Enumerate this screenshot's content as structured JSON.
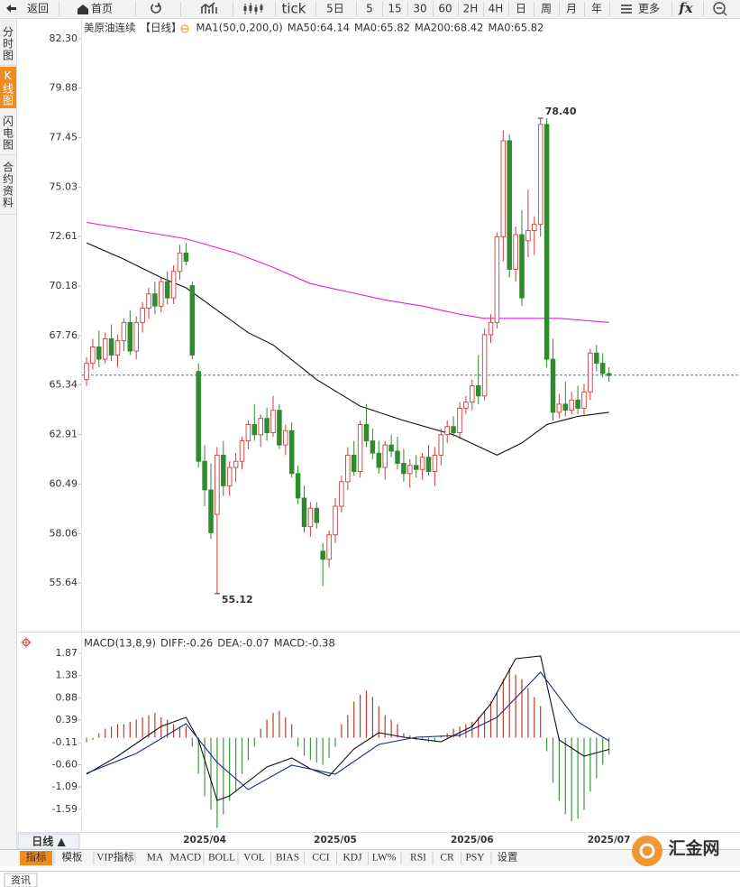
{
  "toolbar": {
    "items": [
      "返回",
      "首页",
      "tick",
      "5日",
      "5",
      "15",
      "30",
      "60",
      "2H",
      "4H",
      "日",
      "周",
      "月",
      "年",
      "更多",
      "fx"
    ]
  },
  "sidebar": {
    "tabs": [
      "分时图",
      "K线图",
      "闪电图",
      "合约资料"
    ]
  },
  "chart_data": [
    {
      "type": "candlestick",
      "legend": [
        {
          "text": "美原油连续",
          "color": "#222222"
        },
        {
          "text": "【日线】",
          "color": "#e8890c"
        },
        {
          "text": "MA1(50,0,200,0)",
          "color": "#222222"
        },
        {
          "text": "MA50:64.14",
          "color": "#222222"
        },
        {
          "text": "MA0:65.82",
          "color": "#1c2a8c"
        },
        {
          "text": "MA200:68.42",
          "color": "#e020e0"
        },
        {
          "text": "MA0:65.82",
          "color": "#e8890c"
        }
      ],
      "ylim": [
        53.7,
        82.6
      ],
      "yticks": [
        {
          "value": 82.3,
          "label": "82.30"
        },
        79.88,
        77.45,
        75.03,
        72.61,
        70.18,
        67.76,
        65.34,
        62.91,
        60.49,
        58.06,
        55.64
      ],
      "grid": false,
      "up_color": "#d23c3c",
      "down_color": "#2e8b2e",
      "last_price": 65.82,
      "last_price_color": "#4a7ab5",
      "categories": [
        null,
        null,
        null,
        null,
        null,
        null,
        null,
        null,
        null,
        null,
        null,
        null,
        null,
        null,
        null,
        null,
        null,
        null,
        null,
        "2025/04",
        null,
        null,
        null,
        null,
        null,
        null,
        null,
        null,
        null,
        null,
        null,
        null,
        null,
        null,
        null,
        null,
        null,
        null,
        null,
        null,
        "2025/05",
        null,
        null,
        null,
        null,
        null,
        null,
        null,
        null,
        null,
        null,
        null,
        null,
        null,
        null,
        null,
        null,
        null,
        null,
        null,
        null,
        null,
        "2025/06",
        null,
        null,
        null,
        null,
        null,
        null,
        null,
        null,
        null,
        null,
        null,
        null,
        null,
        null,
        null,
        null,
        null,
        null,
        null,
        null,
        null,
        "2025/07"
      ],
      "candles": [
        [
          65.6,
          66.7,
          65.3,
          66.4
        ],
        [
          66.4,
          67.6,
          66.1,
          67.2
        ],
        [
          67.2,
          68.0,
          66.2,
          66.6
        ],
        [
          66.6,
          67.9,
          66.4,
          67.6
        ],
        [
          67.6,
          68.3,
          66.5,
          66.8
        ],
        [
          66.8,
          67.8,
          66.2,
          67.5
        ],
        [
          67.5,
          68.6,
          67.0,
          68.4
        ],
        [
          68.4,
          69.0,
          66.8,
          67.0
        ],
        [
          67.0,
          68.7,
          66.6,
          68.4
        ],
        [
          68.4,
          69.4,
          67.9,
          69.1
        ],
        [
          69.1,
          70.1,
          68.6,
          69.8
        ],
        [
          69.8,
          70.4,
          68.8,
          69.2
        ],
        [
          69.2,
          70.6,
          68.9,
          70.4
        ],
        [
          70.4,
          70.9,
          69.3,
          69.6
        ],
        [
          69.6,
          71.2,
          69.3,
          70.9
        ],
        [
          70.9,
          72.2,
          70.5,
          71.8
        ],
        [
          71.8,
          72.3,
          71.2,
          71.4
        ],
        [
          70.2,
          70.4,
          66.6,
          66.8
        ],
        [
          66.0,
          66.4,
          61.3,
          61.6
        ],
        [
          61.6,
          62.4,
          59.4,
          60.2
        ],
        [
          60.2,
          61.5,
          57.8,
          58.1
        ],
        [
          59.0,
          62.3,
          55.12,
          61.9
        ],
        [
          61.9,
          62.6,
          59.9,
          60.4
        ],
        [
          60.4,
          61.6,
          59.9,
          61.3
        ],
        [
          61.3,
          62.0,
          60.6,
          61.6
        ],
        [
          61.6,
          62.8,
          61.2,
          62.6
        ],
        [
          62.6,
          63.6,
          62.2,
          63.4
        ],
        [
          63.4,
          64.4,
          62.6,
          62.9
        ],
        [
          62.9,
          63.9,
          62.3,
          63.7
        ],
        [
          63.7,
          64.2,
          62.6,
          63.0
        ],
        [
          63.0,
          64.8,
          62.8,
          64.1
        ],
        [
          64.1,
          64.4,
          62.2,
          62.4
        ],
        [
          62.4,
          63.4,
          61.9,
          63.1
        ],
        [
          63.1,
          63.5,
          60.8,
          61.0
        ],
        [
          61.0,
          61.4,
          59.5,
          59.8
        ],
        [
          59.8,
          60.4,
          58.1,
          58.4
        ],
        [
          58.4,
          59.6,
          57.9,
          59.3
        ],
        [
          59.3,
          59.6,
          58.3,
          58.6
        ],
        [
          57.2,
          57.6,
          55.5,
          56.8
        ],
        [
          56.8,
          58.2,
          56.4,
          58.0
        ],
        [
          58.0,
          59.8,
          57.6,
          59.4
        ],
        [
          59.4,
          60.9,
          59.1,
          60.6
        ],
        [
          60.6,
          62.3,
          60.2,
          61.9
        ],
        [
          61.9,
          62.6,
          60.9,
          61.1
        ],
        [
          61.1,
          63.6,
          60.8,
          63.4
        ],
        [
          63.4,
          64.4,
          62.3,
          62.6
        ],
        [
          62.6,
          63.2,
          61.7,
          62.0
        ],
        [
          62.0,
          62.6,
          61.0,
          61.3
        ],
        [
          61.3,
          62.6,
          60.7,
          62.4
        ],
        [
          62.4,
          62.9,
          61.8,
          62.1
        ],
        [
          62.1,
          62.8,
          61.2,
          61.5
        ],
        [
          61.5,
          62.2,
          60.6,
          61.0
        ],
        [
          61.0,
          61.7,
          60.3,
          61.4
        ],
        [
          61.4,
          61.9,
          60.8,
          61.2
        ],
        [
          61.2,
          62.0,
          60.7,
          61.8
        ],
        [
          61.8,
          62.4,
          60.9,
          61.1
        ],
        [
          61.1,
          62.3,
          60.4,
          61.9
        ],
        [
          61.9,
          63.2,
          61.4,
          62.9
        ],
        [
          62.9,
          63.6,
          62.5,
          63.3
        ],
        [
          63.3,
          63.8,
          62.8,
          63.0
        ],
        [
          63.0,
          64.5,
          62.7,
          64.2
        ],
        [
          64.2,
          64.8,
          63.9,
          64.5
        ],
        [
          64.5,
          65.6,
          64.1,
          65.3
        ],
        [
          65.3,
          66.8,
          64.4,
          64.8
        ],
        [
          64.8,
          68.1,
          64.6,
          67.8
        ],
        [
          67.8,
          68.8,
          67.4,
          68.4
        ],
        [
          68.4,
          72.8,
          68.1,
          72.6
        ],
        [
          72.6,
          77.8,
          71.4,
          77.3
        ],
        [
          77.3,
          77.6,
          70.6,
          71.0
        ],
        [
          71.0,
          73.1,
          70.4,
          72.7
        ],
        [
          72.7,
          73.9,
          69.2,
          69.6
        ],
        [
          72.4,
          74.9,
          71.6,
          72.9
        ],
        [
          72.9,
          73.6,
          71.7,
          73.2
        ],
        [
          73.2,
          78.4,
          72.6,
          78.1
        ],
        [
          78.1,
          78.4,
          66.2,
          66.6
        ],
        [
          66.6,
          67.6,
          63.6,
          64.0
        ],
        [
          64.0,
          64.9,
          63.7,
          64.4
        ],
        [
          64.4,
          65.5,
          63.8,
          64.1
        ],
        [
          64.1,
          65.0,
          63.9,
          64.6
        ],
        [
          64.6,
          65.3,
          63.9,
          64.2
        ],
        [
          64.2,
          65.4,
          63.8,
          65.0
        ],
        [
          65.0,
          67.1,
          64.6,
          66.9
        ],
        [
          66.9,
          67.3,
          66.0,
          66.4
        ],
        [
          66.4,
          66.9,
          65.7,
          65.9
        ],
        [
          65.9,
          66.2,
          65.5,
          65.8
        ]
      ],
      "lines": [
        {
          "color": "#e020e0",
          "x": [
            0,
            8,
            16,
            24,
            30,
            36,
            42,
            48,
            54,
            60,
            64,
            70,
            76,
            84
          ],
          "values": [
            73.3,
            72.9,
            72.5,
            71.8,
            71.1,
            70.3,
            69.9,
            69.5,
            69.2,
            68.8,
            68.6,
            68.6,
            68.6,
            68.4
          ]
        },
        {
          "color": "#111111",
          "x": [
            0,
            6,
            12,
            16,
            21,
            26,
            30,
            37,
            44,
            51,
            59,
            66,
            70,
            74,
            79,
            84
          ],
          "values": [
            72.3,
            71.5,
            70.6,
            70.1,
            69.0,
            67.9,
            67.3,
            65.6,
            64.3,
            63.6,
            62.9,
            61.9,
            62.5,
            63.4,
            63.8,
            64.0
          ]
        }
      ],
      "annotations": [
        {
          "text": "78.40",
          "index": 73,
          "color": "#d23c3c"
        },
        {
          "text": "55.12",
          "index": 21,
          "color": "#2e8b2e"
        }
      ]
    },
    {
      "type": "macd",
      "legend": [
        {
          "text": "MACD(13,8,9)",
          "color": "#222222"
        },
        {
          "text": "DIFF:-0.26",
          "color": "#222222"
        },
        {
          "text": "DEA:-0.07",
          "color": "#1c2a8c"
        },
        {
          "text": "MACD:-0.38",
          "color": "#e020e0"
        }
      ],
      "ylim": [
        -2.15,
        2.05
      ],
      "yticks": [
        1.87,
        1.38,
        0.88,
        0.39,
        -0.11,
        {
          "value": -0.6,
          "label": "-0.60"
        },
        -1.09,
        -1.59
      ],
      "up_color": "#c0392b",
      "down_color": "#3c9a3c",
      "histogram": [
        -0.1,
        -0.05,
        0.1,
        0.2,
        0.25,
        0.3,
        0.3,
        0.35,
        0.4,
        0.45,
        0.5,
        0.55,
        0.45,
        0.4,
        0.3,
        0.25,
        0.25,
        -0.2,
        -0.8,
        -1.3,
        -1.6,
        -2.0,
        -1.7,
        -1.4,
        -1.2,
        -0.8,
        -0.5,
        -0.2,
        0.2,
        0.4,
        0.55,
        0.6,
        0.45,
        0.3,
        -0.2,
        -0.4,
        -0.5,
        -0.55,
        -0.6,
        -0.45,
        -0.2,
        0.3,
        0.5,
        0.8,
        0.95,
        1.05,
        0.9,
        0.7,
        0.5,
        0.4,
        0.3,
        0.1,
        0.05,
        -0.05,
        -0.05,
        -0.1,
        -0.1,
        0.05,
        0.1,
        0.2,
        0.25,
        0.3,
        0.35,
        0.45,
        0.6,
        0.8,
        1.0,
        1.3,
        1.55,
        1.4,
        1.3,
        1.1,
        0.9,
        0.7,
        -0.3,
        -1.0,
        -1.4,
        -1.7,
        -1.85,
        -1.8,
        -1.6,
        -1.2,
        -0.9,
        -0.6,
        -0.38
      ],
      "lines": [
        {
          "color": "#111111",
          "x": [
            0,
            5,
            12,
            16,
            18,
            21,
            23,
            29,
            33,
            36,
            39,
            43,
            47,
            51,
            57,
            62,
            65,
            69,
            73,
            76,
            80,
            84
          ],
          "values": [
            -0.81,
            -0.41,
            0.25,
            0.45,
            -0.05,
            -1.39,
            -1.29,
            -0.65,
            -0.45,
            -0.69,
            -0.85,
            -0.25,
            0.11,
            0.01,
            -0.09,
            0.25,
            0.75,
            1.75,
            1.81,
            -0.05,
            -0.41,
            -0.26
          ]
        },
        {
          "color": "#1c2a8c",
          "x": [
            0,
            8,
            16,
            21,
            26,
            33,
            40,
            47,
            53,
            60,
            66,
            73,
            79,
            84
          ],
          "values": [
            -0.79,
            -0.35,
            0.31,
            -0.55,
            -1.15,
            -0.61,
            -0.81,
            -0.15,
            0.01,
            0.05,
            0.45,
            1.45,
            0.35,
            -0.07
          ]
        }
      ]
    }
  ],
  "footer": {
    "period": "日线 ▲",
    "tabs": [
      "指标",
      "模板",
      "VIP指标",
      "MA",
      "MACD",
      "BOLL",
      "VOL",
      "BIAS",
      "CCI",
      "KDJ",
      "LW%",
      "RSI",
      "CR",
      "PSY",
      "设置"
    ],
    "news": "资讯",
    "logo": "汇金网"
  }
}
